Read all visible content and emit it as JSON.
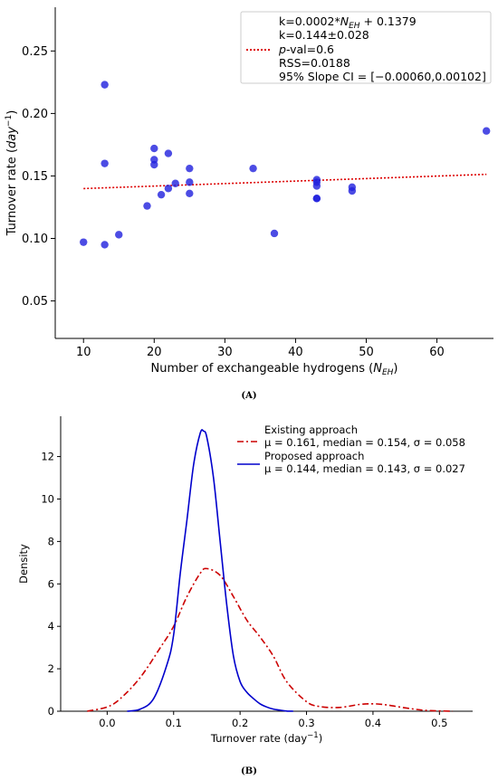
{
  "chart_data": [
    {
      "panel": "A",
      "type": "scatter",
      "xlabel_main": "Number of exchangeable hydrogens (",
      "xlabel_symbol": "N",
      "xlabel_sub": "EH",
      "xlabel_close": ")",
      "ylabel_main": "Turnover rate (",
      "ylabel_unit": "day",
      "ylabel_exp": "−1",
      "ylabel_close": ")",
      "xlim": [
        6,
        68
      ],
      "ylim": [
        0.02,
        0.285
      ],
      "xticks": [
        10,
        20,
        30,
        40,
        50,
        60
      ],
      "yticks": [
        0.05,
        0.1,
        0.15,
        0.2,
        0.25
      ],
      "ytick_labels": [
        "0.05",
        "0.10",
        "0.15",
        "0.20",
        "0.25"
      ],
      "points": [
        [
          10,
          0.097
        ],
        [
          13,
          0.223
        ],
        [
          13,
          0.16
        ],
        [
          13,
          0.095
        ],
        [
          15,
          0.103
        ],
        [
          19,
          0.126
        ],
        [
          20,
          0.172
        ],
        [
          20,
          0.163
        ],
        [
          20,
          0.159
        ],
        [
          21,
          0.135
        ],
        [
          22,
          0.168
        ],
        [
          22,
          0.14
        ],
        [
          23,
          0.144
        ],
        [
          25,
          0.156
        ],
        [
          25,
          0.145
        ],
        [
          25,
          0.136
        ],
        [
          34,
          0.156
        ],
        [
          37,
          0.104
        ],
        [
          43,
          0.147
        ],
        [
          43,
          0.145
        ],
        [
          43,
          0.142
        ],
        [
          43,
          0.132
        ],
        [
          43,
          0.132
        ],
        [
          48,
          0.141
        ],
        [
          48,
          0.138
        ],
        [
          67,
          0.186
        ]
      ],
      "point_color": "#1f1fdd",
      "fit": {
        "slope": 0.0002,
        "intercept": 0.1379,
        "x_range": [
          10,
          67
        ],
        "color": "#dd0000"
      },
      "legend": {
        "placement": "top-right",
        "line1_prefix": "k=0.0002*",
        "line1_symbol": "N",
        "line1_sub": "EH",
        "line1_suffix": " + 0.1379",
        "line2": "k=0.144±0.028",
        "line3_italic": "p",
        "line3_rest": "-val=0.6",
        "line4": "RSS=0.0188",
        "line5": "95% Slope CI = [−0.00060,0.00102]"
      },
      "caption": "(A)"
    },
    {
      "panel": "B",
      "type": "line",
      "xlabel": "Turnover rate (day",
      "xlabel_exp": "−1",
      "xlabel_close": ")",
      "ylabel": "Density",
      "xlim": [
        -0.07,
        0.55
      ],
      "ylim": [
        0,
        13.9
      ],
      "xticks": [
        0.0,
        0.1,
        0.2,
        0.3,
        0.4,
        0.5
      ],
      "xtick_labels": [
        "0.0",
        "0.1",
        "0.2",
        "0.3",
        "0.4",
        "0.5"
      ],
      "yticks": [
        0,
        2,
        4,
        6,
        8,
        10,
        12
      ],
      "series": [
        {
          "name": "Existing approach",
          "stats": "μ = 0.161, median = 0.154, σ = 0.058",
          "color": "#cc0000",
          "style": "dashdot",
          "x": [
            -0.03,
            0.0,
            0.02,
            0.05,
            0.08,
            0.1,
            0.12,
            0.14,
            0.15,
            0.17,
            0.19,
            0.21,
            0.23,
            0.25,
            0.27,
            0.3,
            0.32,
            0.35,
            0.38,
            0.4,
            0.42,
            0.45,
            0.48,
            0.52
          ],
          "y": [
            0.0,
            0.2,
            0.6,
            1.6,
            3.0,
            4.0,
            5.4,
            6.5,
            6.72,
            6.4,
            5.4,
            4.3,
            3.5,
            2.6,
            1.4,
            0.45,
            0.22,
            0.18,
            0.32,
            0.35,
            0.3,
            0.15,
            0.04,
            0.0
          ]
        },
        {
          "name": "Proposed approach",
          "stats": "μ = 0.144, median = 0.143, σ = 0.027",
          "color": "#0000cc",
          "style": "solid",
          "x": [
            0.03,
            0.05,
            0.07,
            0.09,
            0.1,
            0.11,
            0.12,
            0.13,
            0.14,
            0.145,
            0.15,
            0.16,
            0.17,
            0.18,
            0.19,
            0.2,
            0.21,
            0.22,
            0.23,
            0.24,
            0.25,
            0.26,
            0.27,
            0.28
          ],
          "y": [
            0.0,
            0.1,
            0.6,
            2.2,
            3.6,
            6.5,
            9.0,
            11.6,
            13.1,
            13.2,
            12.9,
            11.0,
            8.0,
            5.0,
            2.6,
            1.4,
            0.9,
            0.6,
            0.35,
            0.2,
            0.1,
            0.05,
            0.01,
            0.0
          ]
        }
      ],
      "legend_placement": "top-right",
      "caption": "(B)"
    }
  ]
}
